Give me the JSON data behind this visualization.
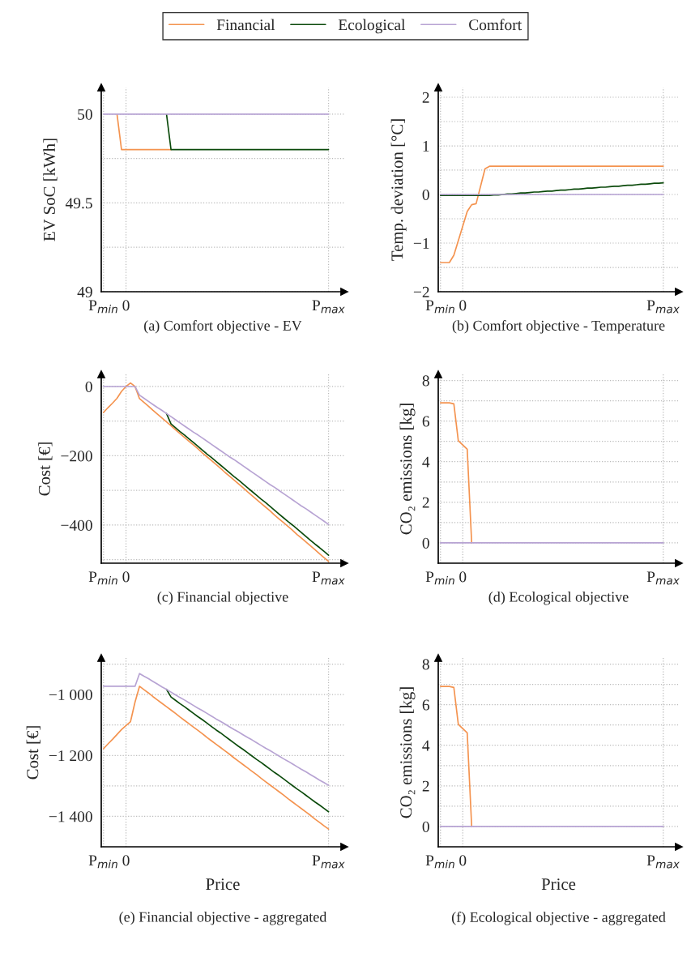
{
  "chart_data": [
    {
      "type": "line",
      "title": "(a) Comfort objective - EV",
      "ylabel": "EV SoC [kWh]",
      "legend": "top",
      "grid": true,
      "categories": [
        "P$_{min}$",
        null,
        null,
        null,
        null,
        "0",
        null,
        null,
        null,
        null,
        null,
        null,
        null,
        null,
        null,
        null,
        null,
        null,
        null,
        null,
        null,
        null,
        null,
        null,
        null,
        null,
        null,
        null,
        null,
        null,
        null,
        null,
        null,
        null,
        null,
        null,
        null,
        null,
        null,
        null,
        null,
        null,
        null,
        null,
        null,
        null,
        null,
        null,
        null,
        null,
        "P$_{max}$"
      ],
      "ylim": [
        49,
        50.15
      ],
      "yticks": [
        49,
        {
          "value": 49.25,
          "label": null
        },
        49.5,
        {
          "value": 49.75,
          "label": null
        },
        50
      ],
      "series": [
        {
          "name": "Financial",
          "color": "#f4934f",
          "values": [
            null,
            null,
            null,
            50,
            49.8,
            49.8,
            49.8,
            49.8,
            49.8,
            49.8,
            49.8,
            49.8,
            49.8,
            49.8,
            49.8,
            49.8,
            null,
            null,
            null,
            null,
            null,
            null,
            null,
            null,
            null,
            null,
            null,
            null,
            null,
            null,
            null,
            null,
            null,
            null,
            null,
            null,
            null,
            null,
            null,
            null,
            null,
            null,
            null,
            null,
            null,
            null,
            null,
            null,
            null,
            null,
            null
          ]
        },
        {
          "name": "Ecological",
          "color": "#0b4a0b",
          "values": [
            null,
            null,
            null,
            null,
            null,
            null,
            null,
            null,
            null,
            null,
            null,
            null,
            null,
            null,
            50,
            49.8,
            49.8,
            49.8,
            49.8,
            49.8,
            49.8,
            49.8,
            49.8,
            49.8,
            49.8,
            49.8,
            49.8,
            49.8,
            49.8,
            49.8,
            49.8,
            49.8,
            49.8,
            49.8,
            49.8,
            49.8,
            49.8,
            49.8,
            49.8,
            49.8,
            49.8,
            49.8,
            49.8,
            49.8,
            49.8,
            49.8,
            49.8,
            49.8,
            49.8,
            49.8,
            49.8
          ]
        },
        {
          "name": "Comfort",
          "color": "#b7a3d3",
          "values": [
            50,
            50,
            50,
            50,
            50,
            50,
            50,
            50,
            50,
            50,
            50,
            50,
            50,
            50,
            50,
            50,
            50,
            50,
            50,
            50,
            50,
            50,
            50,
            50,
            50,
            50,
            50,
            50,
            50,
            50,
            50,
            50,
            50,
            50,
            50,
            50,
            50,
            50,
            50,
            50,
            50,
            50,
            50,
            50,
            50,
            50,
            50,
            50,
            50,
            50,
            50
          ]
        }
      ]
    },
    {
      "type": "line",
      "title": "(b) Comfort objective - Temperature",
      "ylabel": "Temp. deviation [°C]",
      "grid": true,
      "categories": [
        "P$_{min}$",
        null,
        null,
        null,
        null,
        "0",
        null,
        null,
        null,
        null,
        null,
        null,
        null,
        null,
        null,
        null,
        null,
        null,
        null,
        null,
        null,
        null,
        null,
        null,
        null,
        null,
        null,
        null,
        null,
        null,
        null,
        null,
        null,
        null,
        null,
        null,
        null,
        null,
        null,
        null,
        null,
        null,
        null,
        null,
        null,
        null,
        null,
        null,
        null,
        null,
        "P$_{max}$"
      ],
      "ylim": [
        -2,
        2.2
      ],
      "yticks": [
        {
          "value": -2,
          "label": "−2"
        },
        {
          "value": -1.5,
          "label": null
        },
        {
          "value": -1,
          "label": "−1"
        },
        {
          "value": -0.5,
          "label": null
        },
        0,
        {
          "value": 0.5,
          "label": null
        },
        1,
        {
          "value": 1.5,
          "label": null
        },
        2
      ],
      "series": [
        {
          "color": "#f4934f",
          "values": [
            -1.4,
            -1.4,
            -1.4,
            -1.25,
            -0.95,
            -0.65,
            -0.35,
            -0.21,
            -0.19,
            0.17,
            0.53,
            0.58,
            0.58,
            0.58,
            0.58,
            0.58,
            0.58,
            0.58,
            0.58,
            0.58,
            0.58,
            0.58,
            0.58,
            0.58,
            0.58,
            0.58,
            0.58,
            0.58,
            0.58,
            0.58,
            0.58,
            0.58,
            0.58,
            0.58,
            0.58,
            0.58,
            0.58,
            0.58,
            0.58,
            0.58,
            0.58,
            0.58,
            0.58,
            0.58,
            0.58,
            0.58,
            0.58,
            0.58,
            0.58,
            0.58,
            0.58
          ]
        },
        {
          "color": "#0b4a0b",
          "values": [
            -0.02,
            -0.02,
            -0.02,
            -0.02,
            -0.02,
            -0.02,
            -0.02,
            -0.02,
            -0.02,
            -0.02,
            -0.02,
            -0.02,
            -0.01,
            -0.01,
            0,
            0.01,
            0.01,
            0.02,
            0.03,
            0.03,
            0.04,
            0.05,
            0.05,
            0.06,
            0.07,
            0.07,
            0.08,
            0.09,
            0.09,
            0.1,
            0.11,
            0.11,
            0.12,
            0.13,
            0.13,
            0.14,
            0.15,
            0.15,
            0.16,
            0.17,
            0.17,
            0.18,
            0.19,
            0.19,
            0.2,
            0.21,
            0.21,
            0.22,
            0.23,
            0.23,
            0.24
          ]
        },
        {
          "color": "#b7a3d3",
          "values": [
            0,
            0,
            0,
            0,
            0,
            0,
            0,
            0,
            0,
            0,
            0,
            0,
            0,
            0,
            0,
            0,
            0,
            0,
            0,
            0,
            0,
            0,
            0,
            0,
            0,
            0,
            0,
            0,
            0,
            0,
            0,
            0,
            0,
            0,
            0,
            0,
            0,
            0,
            0,
            0,
            0,
            0,
            0,
            0,
            0,
            0,
            0,
            0,
            0,
            0,
            0
          ]
        }
      ]
    },
    {
      "type": "line",
      "title": "(c) Financial objective",
      "ylabel": "Cost [€]",
      "grid": true,
      "categories": [
        "P$_{min}$",
        null,
        null,
        null,
        null,
        "0",
        null,
        null,
        null,
        null,
        null,
        null,
        null,
        null,
        null,
        null,
        null,
        null,
        null,
        null,
        null,
        null,
        null,
        null,
        null,
        null,
        null,
        null,
        null,
        null,
        null,
        null,
        null,
        null,
        null,
        null,
        null,
        null,
        null,
        null,
        null,
        null,
        null,
        null,
        null,
        null,
        null,
        null,
        null,
        null,
        "P$_{max}$"
      ],
      "ylim": [
        -510,
        35
      ],
      "yticks": [
        {
          "value": -500,
          "label": null
        },
        {
          "value": -400,
          "label": "−400"
        },
        {
          "value": -300,
          "label": null
        },
        {
          "value": -200,
          "label": "−200"
        },
        {
          "value": -100,
          "label": null
        },
        0
      ],
      "series": [
        {
          "color": "#f4934f",
          "values": [
            -75,
            -61,
            -48,
            -34,
            -14,
            0,
            10,
            0,
            -35,
            -46,
            -57,
            -69,
            -80,
            -91,
            -102,
            -113,
            -125,
            -136,
            -147,
            -158,
            -169,
            -180,
            -192,
            -203,
            -214,
            -225,
            -236,
            -248,
            -259,
            -270,
            -281,
            -292,
            -304,
            -315,
            -326,
            -337,
            -348,
            -359,
            -371,
            -382,
            -393,
            -404,
            -415,
            -427,
            -438,
            -449,
            -460,
            -471,
            -483,
            -494,
            -505
          ]
        },
        {
          "color": "#0b4a0b",
          "values": [
            null,
            null,
            null,
            null,
            null,
            null,
            null,
            null,
            null,
            null,
            null,
            null,
            null,
            null,
            -78,
            -108,
            -119,
            -130,
            -140,
            -151,
            -162,
            -173,
            -184,
            -195,
            -205,
            -216,
            -227,
            -238,
            -249,
            -260,
            -270,
            -281,
            -292,
            -303,
            -314,
            -325,
            -335,
            -346,
            -357,
            -368,
            -379,
            -390,
            -400,
            -411,
            -422,
            -433,
            -444,
            -455,
            -465,
            -476,
            -487
          ]
        },
        {
          "color": "#b7a3d3",
          "values": [
            0,
            0,
            0,
            0,
            0,
            0,
            0,
            0,
            -25,
            -34,
            -43,
            -52,
            -61,
            -69,
            -78,
            -87,
            -96,
            -105,
            -114,
            -123,
            -132,
            -140,
            -149,
            -158,
            -167,
            -176,
            -185,
            -194,
            -203,
            -211,
            -220,
            -229,
            -238,
            -247,
            -256,
            -265,
            -274,
            -283,
            -291,
            -300,
            -309,
            -318,
            -327,
            -336,
            -345,
            -353,
            -362,
            -371,
            -380,
            -389,
            -398
          ]
        }
      ]
    },
    {
      "type": "line",
      "title": "(d) Ecological objective",
      "ylabel": "CO₂ emissions [kg]",
      "grid": true,
      "categories": [
        "P$_{min}$",
        null,
        null,
        null,
        null,
        "0",
        null,
        null,
        null,
        null,
        null,
        null,
        null,
        null,
        null,
        null,
        null,
        null,
        null,
        null,
        null,
        null,
        null,
        null,
        null,
        null,
        null,
        null,
        null,
        null,
        null,
        null,
        null,
        null,
        null,
        null,
        null,
        null,
        null,
        null,
        null,
        null,
        null,
        null,
        null,
        null,
        null,
        null,
        null,
        null,
        "P$_{max}$"
      ],
      "ylim": [
        -1,
        8.3
      ],
      "yticks": [
        0,
        {
          "value": 1,
          "label": null
        },
        2,
        {
          "value": 3,
          "label": null
        },
        4,
        {
          "value": 5,
          "label": null
        },
        6,
        {
          "value": 7,
          "label": null
        },
        8
      ],
      "series": [
        {
          "color": "#f4934f",
          "values": [
            6.9,
            6.9,
            6.9,
            6.85,
            5.03,
            4.82,
            4.61,
            0,
            null,
            null,
            null,
            null,
            null,
            null,
            null,
            null,
            null,
            null,
            null,
            null,
            null,
            null,
            null,
            null,
            null,
            null,
            null,
            null,
            null,
            null,
            null,
            null,
            null,
            null,
            null,
            null,
            null,
            null,
            null,
            null,
            null,
            null,
            null,
            null,
            null,
            null,
            null,
            null,
            null,
            null,
            null
          ]
        },
        {
          "color": "#0b4a0b",
          "values": [
            null,
            null,
            null,
            null,
            null,
            null,
            null,
            null,
            null,
            null,
            null,
            null,
            null,
            null,
            null,
            null,
            null,
            null,
            null,
            null,
            null,
            null,
            null,
            null,
            null,
            null,
            null,
            null,
            null,
            null,
            null,
            null,
            null,
            null,
            null,
            null,
            null,
            null,
            null,
            null,
            null,
            null,
            null,
            null,
            null,
            null,
            null,
            null,
            null,
            null,
            null
          ]
        },
        {
          "color": "#b7a3d3",
          "values": [
            0,
            0,
            0,
            0,
            0,
            0,
            0,
            0,
            0,
            0,
            0,
            0,
            0,
            0,
            0,
            0,
            0,
            0,
            0,
            0,
            0,
            0,
            0,
            0,
            0,
            0,
            0,
            0,
            0,
            0,
            0,
            0,
            0,
            0,
            0,
            0,
            0,
            0,
            0,
            0,
            0,
            0,
            0,
            0,
            0,
            0,
            0,
            0,
            0,
            0,
            0
          ]
        }
      ]
    },
    {
      "type": "line",
      "title": "(e) Financial objective - aggregated",
      "xlabel": "Price",
      "ylabel": "Cost [€]",
      "grid": true,
      "categories": [
        "P$_{min}$",
        null,
        null,
        null,
        null,
        "0",
        null,
        null,
        null,
        null,
        null,
        null,
        null,
        null,
        null,
        null,
        null,
        null,
        null,
        null,
        null,
        null,
        null,
        null,
        null,
        null,
        null,
        null,
        null,
        null,
        null,
        null,
        null,
        null,
        null,
        null,
        null,
        null,
        null,
        null,
        null,
        null,
        null,
        null,
        null,
        null,
        null,
        null,
        null,
        null,
        "P$_{max}$"
      ],
      "ylim": [
        -1500,
        -880
      ],
      "yticks": [
        {
          "value": -1400,
          "label": "−1 400"
        },
        {
          "value": -1300,
          "label": null
        },
        {
          "value": -1200,
          "label": "−1 200"
        },
        {
          "value": -1100,
          "label": null
        },
        {
          "value": -1000,
          "label": "−1 000"
        },
        {
          "value": -900,
          "label": null
        }
      ],
      "series": [
        {
          "color": "#f4934f",
          "values": [
            -1178,
            -1162,
            -1147,
            -1131,
            -1115,
            -1102,
            -1089,
            -1025,
            -973,
            -984,
            -995,
            -1007,
            -1018,
            -1029,
            -1040,
            -1051,
            -1062,
            -1074,
            -1085,
            -1096,
            -1107,
            -1118,
            -1129,
            -1141,
            -1152,
            -1163,
            -1174,
            -1185,
            -1196,
            -1208,
            -1219,
            -1230,
            -1241,
            -1252,
            -1263,
            -1275,
            -1286,
            -1297,
            -1308,
            -1319,
            -1330,
            -1342,
            -1353,
            -1364,
            -1375,
            -1386,
            -1397,
            -1409,
            -1420,
            -1431,
            -1442
          ]
        },
        {
          "color": "#0b4a0b",
          "values": [
            null,
            null,
            null,
            null,
            null,
            null,
            null,
            null,
            null,
            null,
            null,
            null,
            null,
            null,
            -983,
            -1008,
            -1019,
            -1030,
            -1040,
            -1051,
            -1062,
            -1073,
            -1083,
            -1094,
            -1105,
            -1116,
            -1126,
            -1137,
            -1148,
            -1159,
            -1170,
            -1180,
            -1191,
            -1202,
            -1213,
            -1223,
            -1234,
            -1245,
            -1256,
            -1266,
            -1277,
            -1288,
            -1299,
            -1310,
            -1320,
            -1331,
            -1342,
            -1353,
            -1363,
            -1374,
            -1385
          ]
        },
        {
          "color": "#b7a3d3",
          "values": [
            -973,
            -973,
            -973,
            -973,
            -973,
            -973,
            -973,
            -973,
            -931,
            -940,
            -948,
            -957,
            -966,
            -975,
            -983,
            -992,
            -1001,
            -1010,
            -1018,
            -1027,
            -1036,
            -1045,
            -1053,
            -1062,
            -1071,
            -1080,
            -1088,
            -1097,
            -1106,
            -1115,
            -1123,
            -1132,
            -1141,
            -1149,
            -1158,
            -1167,
            -1176,
            -1184,
            -1193,
            -1202,
            -1211,
            -1219,
            -1228,
            -1237,
            -1246,
            -1254,
            -1263,
            -1272,
            -1281,
            -1289,
            -1298
          ]
        }
      ]
    },
    {
      "type": "line",
      "title": "(f) Ecological objective - aggregated",
      "xlabel": "Price",
      "ylabel": "CO₂ emissions [kg]",
      "grid": true,
      "categories": [
        "P$_{min}$",
        null,
        null,
        null,
        null,
        "0",
        null,
        null,
        null,
        null,
        null,
        null,
        null,
        null,
        null,
        null,
        null,
        null,
        null,
        null,
        null,
        null,
        null,
        null,
        null,
        null,
        null,
        null,
        null,
        null,
        null,
        null,
        null,
        null,
        null,
        null,
        null,
        null,
        null,
        null,
        null,
        null,
        null,
        null,
        null,
        null,
        null,
        null,
        null,
        null,
        "P$_{max}$"
      ],
      "ylim": [
        -1,
        8.3
      ],
      "yticks": [
        0,
        {
          "value": 1,
          "label": null
        },
        2,
        {
          "value": 3,
          "label": null
        },
        4,
        {
          "value": 5,
          "label": null
        },
        6,
        {
          "value": 7,
          "label": null
        },
        8
      ],
      "series": [
        {
          "color": "#f4934f",
          "values": [
            6.9,
            6.9,
            6.9,
            6.85,
            5.03,
            4.82,
            4.61,
            0,
            null,
            null,
            null,
            null,
            null,
            null,
            null,
            null,
            null,
            null,
            null,
            null,
            null,
            null,
            null,
            null,
            null,
            null,
            null,
            null,
            null,
            null,
            null,
            null,
            null,
            null,
            null,
            null,
            null,
            null,
            null,
            null,
            null,
            null,
            null,
            null,
            null,
            null,
            null,
            null,
            null,
            null,
            null
          ]
        },
        {
          "color": "#0b4a0b",
          "values": [
            null,
            null,
            null,
            null,
            null,
            null,
            null,
            null,
            null,
            null,
            null,
            null,
            null,
            null,
            null,
            null,
            null,
            null,
            null,
            null,
            null,
            null,
            null,
            null,
            null,
            null,
            null,
            null,
            null,
            null,
            null,
            null,
            null,
            null,
            null,
            null,
            null,
            null,
            null,
            null,
            null,
            null,
            null,
            null,
            null,
            null,
            null,
            null,
            null,
            null,
            null
          ]
        },
        {
          "color": "#b7a3d3",
          "values": [
            0,
            0,
            0,
            0,
            0,
            0,
            0,
            0,
            0,
            0,
            0,
            0,
            0,
            0,
            0,
            0,
            0,
            0,
            0,
            0,
            0,
            0,
            0,
            0,
            0,
            0,
            0,
            0,
            0,
            0,
            0,
            0,
            0,
            0,
            0,
            0,
            0,
            0,
            0,
            0,
            0,
            0,
            0,
            0,
            0,
            0,
            0,
            0,
            0,
            0,
            0
          ]
        }
      ]
    }
  ]
}
